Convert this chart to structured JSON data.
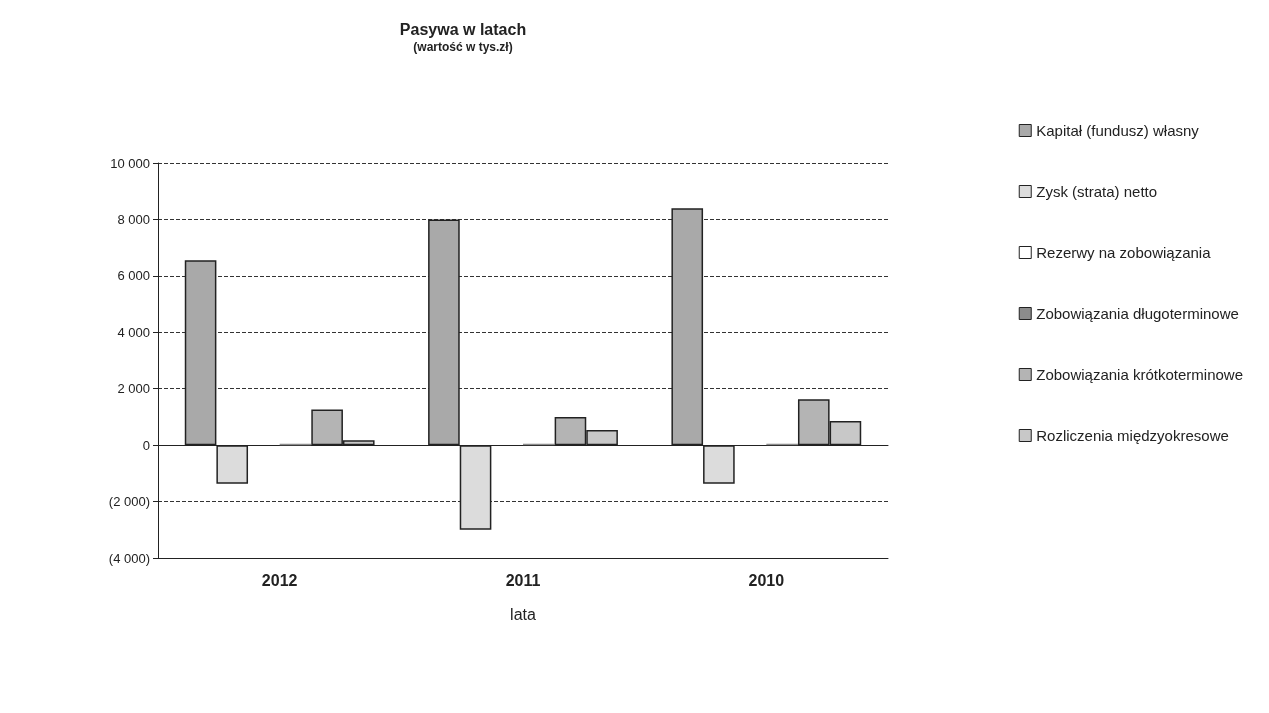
{
  "chart_data": {
    "type": "bar",
    "title": "Pasywa w latach",
    "subtitle": "(wartość w tys.zł)",
    "xlabel": "lata",
    "categories": [
      "2012",
      "2011",
      "2010"
    ],
    "series": [
      {
        "name": "Kapitał (fundusz) własny",
        "color": "#a9a9a9",
        "values": [
          6550,
          8000,
          8400
        ]
      },
      {
        "name": "Zysk (strata) netto",
        "color": "#dcdcdc",
        "values": [
          -1370,
          -3000,
          -1370
        ]
      },
      {
        "name": "Rezerwy na zobowiązania",
        "color": "#ffffff",
        "values": [
          0,
          0,
          0
        ]
      },
      {
        "name": "Zobowiązania długoterminowe",
        "color": "#8c8c8c",
        "values": [
          50,
          50,
          50
        ]
      },
      {
        "name": "Zobowiązania krótkoterminowe",
        "color": "#b4b4b4",
        "values": [
          1260,
          1000,
          1630
        ]
      },
      {
        "name": "Rozliczenia międzyokresowe",
        "color": "#c8c8c8",
        "values": [
          170,
          540,
          860
        ]
      }
    ],
    "ylim": [
      -4000,
      10000
    ],
    "yticks": [
      {
        "value": -4000,
        "label": "(4 000)"
      },
      {
        "value": -2000,
        "label": "(2 000)"
      },
      0,
      {
        "value": 2000,
        "label": "2 000"
      },
      {
        "value": 4000,
        "label": "4 000"
      },
      {
        "value": 6000,
        "label": "6 000"
      },
      {
        "value": 8000,
        "label": "8 000"
      },
      {
        "value": 10000,
        "label": "10 000"
      }
    ],
    "grid": "y",
    "legend": "right",
    "line_style": "dashed"
  }
}
